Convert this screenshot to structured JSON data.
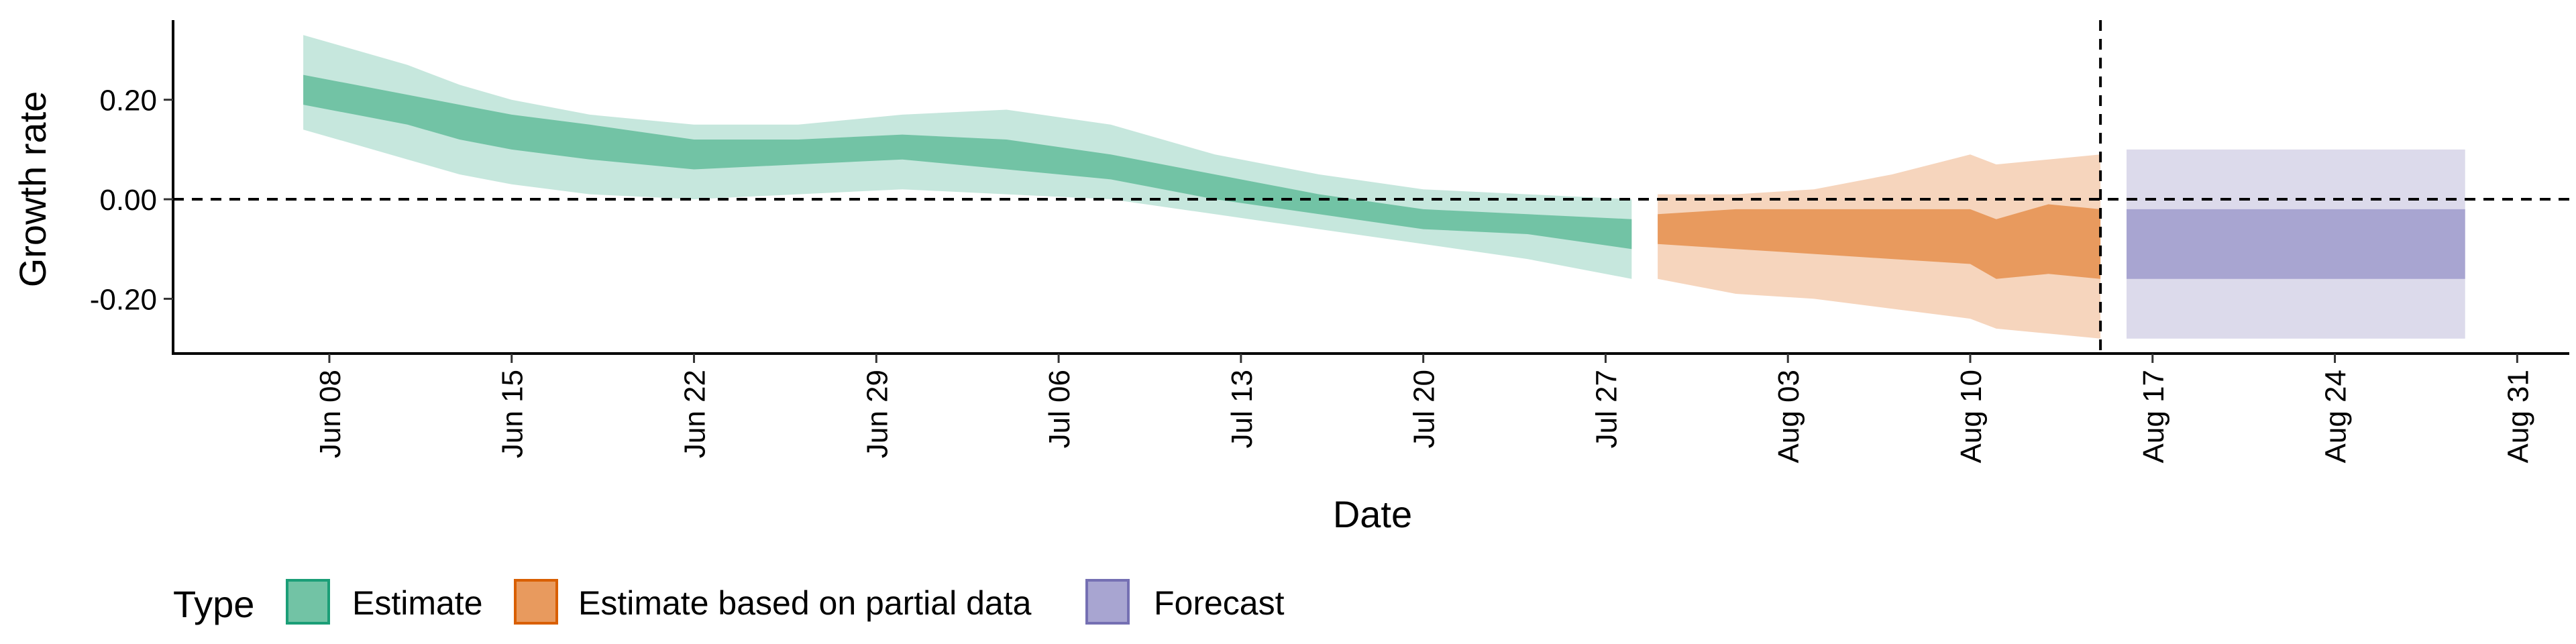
{
  "chart_data": {
    "type": "area",
    "xlabel": "Date",
    "ylabel": "Growth rate",
    "x_ticks": [
      "2020-06-08",
      "2020-06-15",
      "2020-06-22",
      "2020-06-29",
      "2020-07-06",
      "2020-07-13",
      "2020-07-20",
      "2020-07-27",
      "2020-08-03",
      "2020-08-10",
      "2020-08-17",
      "2020-08-24",
      "2020-08-31"
    ],
    "x_tick_labels": [
      "Jun 08",
      "Jun 15",
      "Jun 22",
      "Jun 29",
      "Jul 06",
      "Jul 13",
      "Jul 20",
      "Jul 27",
      "Aug 03",
      "Aug 10",
      "Aug 17",
      "Aug 24",
      "Aug 31"
    ],
    "xlim": [
      "2020-06-02",
      "2020-09-02"
    ],
    "y_ticks": [
      -0.2,
      0.0,
      0.2
    ],
    "y_tick_labels": [
      "-0.20",
      "0.00",
      "0.20"
    ],
    "ylim": [
      -0.31,
      0.36
    ],
    "grid": false,
    "hline": 0.0,
    "vline_date": "2020-08-15",
    "legend": {
      "title": "Type",
      "position": "bottom-left",
      "entries": [
        "Estimate",
        "Estimate based on partial data",
        "Forecast"
      ]
    },
    "series": [
      {
        "name": "Estimate",
        "color_inner": "#72c3a5",
        "color_outer": "#c6e7dd",
        "color_border": "#1b9e77",
        "points": [
          {
            "date": "2020-06-07",
            "lo90": 0.14,
            "lo50": 0.19,
            "hi50": 0.25,
            "hi90": 0.33
          },
          {
            "date": "2020-06-09",
            "lo90": 0.11,
            "lo50": 0.17,
            "hi50": 0.23,
            "hi90": 0.3
          },
          {
            "date": "2020-06-11",
            "lo90": 0.08,
            "lo50": 0.15,
            "hi50": 0.21,
            "hi90": 0.27
          },
          {
            "date": "2020-06-13",
            "lo90": 0.05,
            "lo50": 0.12,
            "hi50": 0.19,
            "hi90": 0.23
          },
          {
            "date": "2020-06-15",
            "lo90": 0.03,
            "lo50": 0.1,
            "hi50": 0.17,
            "hi90": 0.2
          },
          {
            "date": "2020-06-18",
            "lo90": 0.01,
            "lo50": 0.08,
            "hi50": 0.15,
            "hi90": 0.17
          },
          {
            "date": "2020-06-22",
            "lo90": 0.0,
            "lo50": 0.06,
            "hi50": 0.12,
            "hi90": 0.15
          },
          {
            "date": "2020-06-26",
            "lo90": 0.01,
            "lo50": 0.07,
            "hi50": 0.12,
            "hi90": 0.15
          },
          {
            "date": "2020-06-30",
            "lo90": 0.02,
            "lo50": 0.08,
            "hi50": 0.13,
            "hi90": 0.17
          },
          {
            "date": "2020-07-04",
            "lo90": 0.01,
            "lo50": 0.06,
            "hi50": 0.12,
            "hi90": 0.18
          },
          {
            "date": "2020-07-08",
            "lo90": 0.0,
            "lo50": 0.04,
            "hi50": 0.09,
            "hi90": 0.15
          },
          {
            "date": "2020-07-12",
            "lo90": -0.03,
            "lo50": 0.0,
            "hi50": 0.05,
            "hi90": 0.09
          },
          {
            "date": "2020-07-16",
            "lo90": -0.06,
            "lo50": -0.03,
            "hi50": 0.01,
            "hi90": 0.05
          },
          {
            "date": "2020-07-20",
            "lo90": -0.09,
            "lo50": -0.06,
            "hi50": -0.02,
            "hi90": 0.02
          },
          {
            "date": "2020-07-24",
            "lo90": -0.12,
            "lo50": -0.07,
            "hi50": -0.03,
            "hi90": 0.01
          },
          {
            "date": "2020-07-28",
            "lo90": -0.16,
            "lo50": -0.1,
            "hi50": -0.04,
            "hi90": 0.0
          }
        ]
      },
      {
        "name": "Estimate based on partial data",
        "color_inner": "#e89a5e",
        "color_outer": "#f6d5bd",
        "color_border": "#d95f02",
        "points": [
          {
            "date": "2020-07-29",
            "lo90": -0.16,
            "lo50": -0.09,
            "hi50": -0.03,
            "hi90": 0.01
          },
          {
            "date": "2020-08-01",
            "lo90": -0.19,
            "lo50": -0.1,
            "hi50": -0.02,
            "hi90": 0.01
          },
          {
            "date": "2020-08-04",
            "lo90": -0.2,
            "lo50": -0.11,
            "hi50": -0.02,
            "hi90": 0.02
          },
          {
            "date": "2020-08-07",
            "lo90": -0.22,
            "lo50": -0.12,
            "hi50": -0.02,
            "hi90": 0.05
          },
          {
            "date": "2020-08-10",
            "lo90": -0.24,
            "lo50": -0.13,
            "hi50": -0.02,
            "hi90": 0.09
          },
          {
            "date": "2020-08-11",
            "lo90": -0.26,
            "lo50": -0.16,
            "hi50": -0.04,
            "hi90": 0.07
          },
          {
            "date": "2020-08-13",
            "lo90": -0.27,
            "lo50": -0.15,
            "hi50": -0.01,
            "hi90": 0.08
          },
          {
            "date": "2020-08-15",
            "lo90": -0.28,
            "lo50": -0.16,
            "hi50": -0.02,
            "hi90": 0.09
          }
        ]
      },
      {
        "name": "Forecast",
        "color_inner": "#a8a5d1",
        "color_outer": "#dcdaeb",
        "color_border": "#7570b3",
        "points": [
          {
            "date": "2020-08-16",
            "lo90": -0.28,
            "lo50": -0.16,
            "hi50": -0.02,
            "hi90": 0.1
          },
          {
            "date": "2020-08-29",
            "lo90": -0.28,
            "lo50": -0.16,
            "hi50": -0.02,
            "hi90": 0.1
          }
        ]
      }
    ]
  }
}
